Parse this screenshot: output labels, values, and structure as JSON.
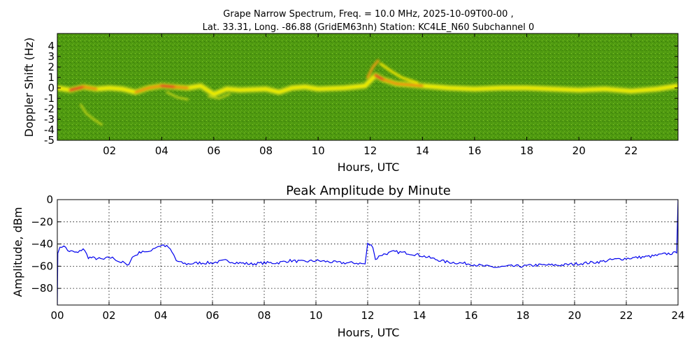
{
  "chart_data": [
    {
      "type": "heatmap",
      "title_lines": [
        "Grape Narrow Spectrum, Freq. = 10.0 MHz, 2025-10-09T00-00 ,",
        "Lat.  33.31, Long. -86.88 (GridEM63nh) Station: KC4LE_N60 Subchannel 0"
      ],
      "xlabel": "Hours, UTC",
      "ylabel": "Doppler Shift (Hz)",
      "xlim": [
        0,
        23.8
      ],
      "ylim": [
        -5,
        5
      ],
      "x_ticks": [
        2,
        4,
        6,
        8,
        10,
        12,
        14,
        16,
        18,
        20,
        22
      ],
      "x_tick_labels": [
        "02",
        "04",
        "06",
        "08",
        "10",
        "12",
        "14",
        "16",
        "18",
        "20",
        "22"
      ],
      "y_ticks": [
        4,
        3,
        2,
        1,
        0,
        -1,
        -2,
        -3,
        -4,
        -5
      ],
      "y_tick_labels": [
        "4",
        "3",
        "2",
        "1",
        "0",
        "-1",
        "-2",
        "-3",
        "-4",
        "-5"
      ],
      "background_color": "#4f9a10",
      "ridge": [
        [
          0,
          0.0,
          2
        ],
        [
          0.5,
          -0.2,
          4
        ],
        [
          1,
          0.1,
          3
        ],
        [
          1.5,
          -0.1,
          2
        ],
        [
          2,
          0.0,
          2
        ],
        [
          2.5,
          -0.1,
          2
        ],
        [
          3,
          -0.4,
          3
        ],
        [
          3.5,
          0.0,
          3
        ],
        [
          4,
          0.2,
          4
        ],
        [
          4.5,
          0.1,
          3
        ],
        [
          5,
          0.0,
          2
        ],
        [
          5.5,
          0.2,
          2
        ],
        [
          6,
          -0.6,
          2
        ],
        [
          6.5,
          -0.1,
          1
        ],
        [
          7,
          -0.2,
          1
        ],
        [
          8,
          -0.1,
          1
        ],
        [
          8.5,
          -0.4,
          2
        ],
        [
          9,
          0.0,
          1
        ],
        [
          9.5,
          0.1,
          2
        ],
        [
          10,
          -0.1,
          1
        ],
        [
          11,
          0.0,
          1
        ],
        [
          11.8,
          0.2,
          2
        ],
        [
          12.2,
          1.2,
          4
        ],
        [
          12.5,
          0.8,
          3
        ],
        [
          13,
          0.4,
          3
        ],
        [
          13.5,
          0.3,
          3
        ],
        [
          14,
          0.2,
          2
        ],
        [
          15,
          0.0,
          2
        ],
        [
          16,
          -0.1,
          1
        ],
        [
          17,
          0.0,
          1
        ],
        [
          18,
          0.0,
          1
        ],
        [
          19,
          -0.1,
          1
        ],
        [
          20,
          -0.2,
          1
        ],
        [
          21,
          -0.1,
          1
        ],
        [
          22,
          -0.3,
          2
        ],
        [
          23,
          -0.1,
          2
        ],
        [
          23.8,
          0.2,
          3
        ]
      ],
      "features": [
        {
          "x": [
            0.9,
            1.1,
            1.4,
            1.7
          ],
          "y": [
            -1.6,
            -2.4,
            -3.0,
            -3.5
          ],
          "intensity": 1
        },
        {
          "x": [
            11.9,
            12.1,
            12.3
          ],
          "y": [
            1.0,
            2.0,
            2.6
          ],
          "intensity": 3
        },
        {
          "x": [
            12.4,
            12.8,
            13.2,
            13.8
          ],
          "y": [
            2.3,
            1.6,
            1.0,
            0.5
          ],
          "intensity": 2
        },
        {
          "x": [
            5.8,
            6.2,
            6.6
          ],
          "y": [
            -0.8,
            -1.0,
            -0.6
          ],
          "intensity": 1
        },
        {
          "x": [
            4.2,
            4.6,
            5.0
          ],
          "y": [
            -0.4,
            -0.9,
            -1.1
          ],
          "intensity": 1
        }
      ]
    },
    {
      "type": "line",
      "title": "Peak Amplitude by Minute",
      "xlabel": "Hours, UTC",
      "ylabel": "Amplitude, dBm",
      "xlim": [
        0,
        24
      ],
      "ylim": [
        -95,
        0
      ],
      "grid": true,
      "x_ticks": [
        0,
        2,
        4,
        6,
        8,
        10,
        12,
        14,
        16,
        18,
        20,
        22,
        24
      ],
      "x_tick_labels": [
        "00",
        "02",
        "04",
        "06",
        "08",
        "10",
        "12",
        "14",
        "16",
        "18",
        "20",
        "22",
        "24"
      ],
      "y_ticks": [
        0,
        -20,
        -40,
        -60,
        -80
      ],
      "y_tick_labels": [
        "0",
        "−20",
        "−40",
        "−60",
        "−80"
      ],
      "color": "#0000ee",
      "series": [
        {
          "x": [
            0,
            0.02,
            0.1,
            0.25,
            0.4,
            0.6,
            0.8,
            1.0,
            1.2,
            1.5,
            1.8,
            2.0,
            2.2,
            2.4,
            2.6,
            2.7,
            2.9,
            3.1,
            3.3,
            3.5,
            3.7,
            3.9,
            4.1,
            4.3,
            4.5,
            4.6,
            4.8,
            5.0,
            5.5,
            6.0,
            6.5,
            7.0,
            7.5,
            8.0,
            8.5,
            9.0,
            9.5,
            10.0,
            10.5,
            11.0,
            11.5,
            11.9,
            12.0,
            12.2,
            12.3,
            12.5,
            13.0,
            13.5,
            14.0,
            14.5,
            15.0,
            15.5,
            16.0,
            16.5,
            17.0,
            17.5,
            18.0,
            18.5,
            19.0,
            19.5,
            20.0,
            20.5,
            21.0,
            21.5,
            22.0,
            22.5,
            23.0,
            23.5,
            23.95,
            24.0
          ],
          "values": [
            -95,
            -47,
            -44,
            -41,
            -46,
            -47,
            -48,
            -44,
            -52,
            -53,
            -54,
            -52,
            -53,
            -56,
            -57,
            -60,
            -52,
            -49,
            -46,
            -48,
            -44,
            -42,
            -41,
            -43,
            -50,
            -55,
            -57,
            -58,
            -57,
            -57,
            -55,
            -57,
            -58,
            -57,
            -57,
            -55,
            -56,
            -55,
            -56,
            -57,
            -57,
            -58,
            -40,
            -42,
            -54,
            -50,
            -47,
            -48,
            -50,
            -53,
            -56,
            -57,
            -58,
            -60,
            -61,
            -60,
            -60,
            -59,
            -59,
            -59,
            -58,
            -57,
            -56,
            -54,
            -53,
            -52,
            -51,
            -49,
            -48,
            0
          ]
        }
      ]
    }
  ]
}
